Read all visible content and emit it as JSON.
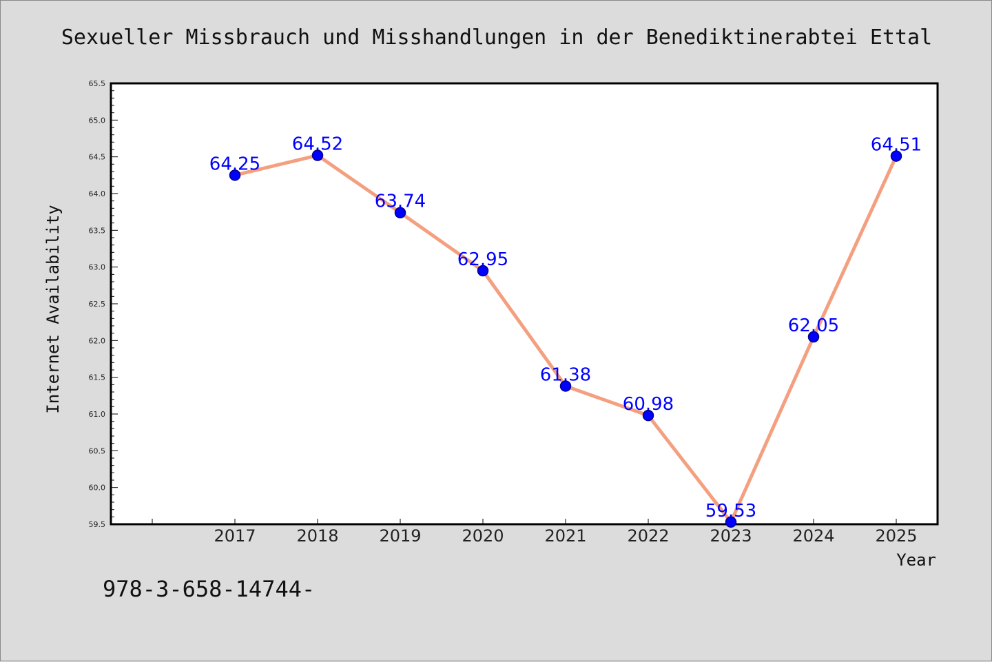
{
  "chart_data": {
    "type": "line",
    "title": "Sexueller Missbrauch und Misshandlungen in der Benediktinerabtei Ettal",
    "xlabel": "Year",
    "ylabel": "Internet Availability",
    "categories": [
      "2017",
      "2018",
      "2019",
      "2020",
      "2021",
      "2022",
      "2023",
      "2024",
      "2025"
    ],
    "values": [
      64.25,
      64.52,
      63.74,
      62.95,
      61.38,
      60.98,
      59.53,
      62.05,
      64.51
    ],
    "value_labels": [
      "64.25",
      "64.52",
      "63.74",
      "62.95",
      "61.38",
      "60.98",
      "59.53",
      "62.05",
      "64.51"
    ],
    "ylim": [
      59.5,
      65.5
    ],
    "yticks": [
      "59.5",
      "60.0",
      "60.5",
      "61.0",
      "61.5",
      "62.0",
      "62.5",
      "63.0",
      "63.5",
      "64.0",
      "64.5",
      "65.0",
      "65.5"
    ],
    "grid": false,
    "legend": "none",
    "colors": {
      "line": "#f4a080",
      "marker": "#0000ff",
      "data_label": "#0000ff",
      "background": "#dcdcdc",
      "plot_background": "#ffffff"
    }
  },
  "footer_text": "978-3-658-14744-"
}
